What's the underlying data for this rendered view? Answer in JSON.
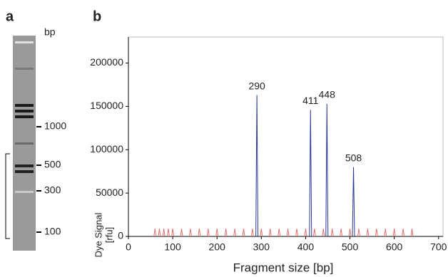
{
  "gel": {
    "panel_label": "a",
    "unit": "bp",
    "markers": [
      "1000",
      "500",
      "300",
      "100"
    ]
  },
  "chart_data": {
    "type": "peaks",
    "panel_label": "b",
    "y_label": [
      "Dye Signal",
      "[rfu]"
    ],
    "x_label": "Fragment size [bp]",
    "xlim": [
      0,
      710
    ],
    "ylim": [
      0,
      230000
    ],
    "xticks": [
      0,
      100,
      200,
      300,
      400,
      500,
      600,
      700
    ],
    "yticks": [
      0,
      50000,
      100000,
      150000,
      200000
    ],
    "series": [
      {
        "color": "#2b3a9a",
        "x": [
          290,
          411,
          448,
          508
        ],
        "values": [
          163000,
          146000,
          153000,
          80000
        ]
      },
      {
        "color": "#e07070",
        "x": [
          60,
          70,
          80,
          90,
          100,
          120,
          140,
          160,
          180,
          200,
          220,
          240,
          260,
          280,
          300,
          320,
          340,
          360,
          380,
          400,
          420,
          440,
          460,
          480,
          500,
          520,
          540,
          560,
          580,
          600,
          620,
          640
        ],
        "values": [
          9000,
          9000,
          9000,
          9000,
          9000,
          9000,
          9000,
          9000,
          9000,
          9000,
          9000,
          9000,
          9000,
          9000,
          9000,
          9000,
          9000,
          9000,
          9000,
          9000,
          9000,
          9000,
          9000,
          9000,
          9000,
          9000,
          9000,
          9000,
          9000,
          9000,
          9000,
          9000
        ]
      }
    ]
  }
}
